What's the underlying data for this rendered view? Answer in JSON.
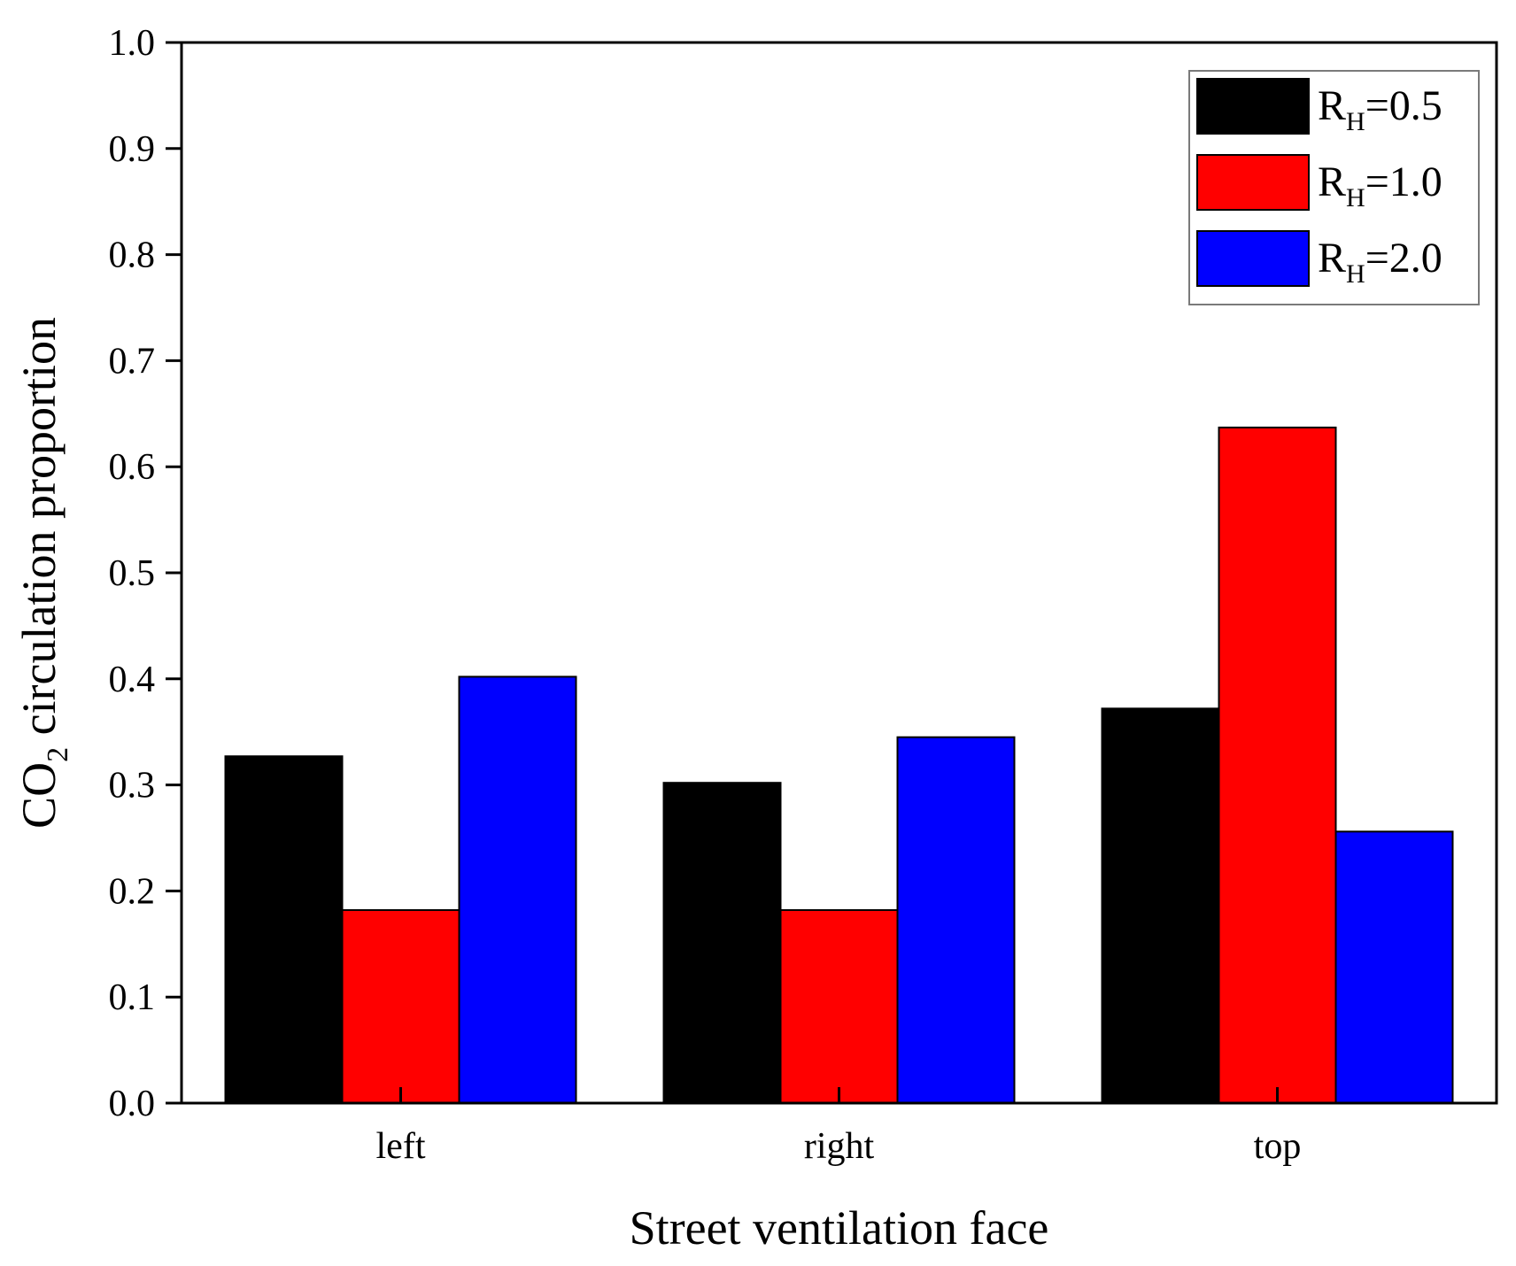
{
  "chart_data": {
    "type": "bar",
    "categories": [
      "left",
      "right",
      "top"
    ],
    "series": [
      {
        "name": "R_H=0.5",
        "label_main": "R",
        "label_sub": "H",
        "label_value": "=0.5",
        "color": "#000000",
        "values": [
          0.327,
          0.302,
          0.372
        ]
      },
      {
        "name": "R_H=1.0",
        "label_main": "R",
        "label_sub": "H",
        "label_value": "=1.0",
        "color": "#ff0000",
        "values": [
          0.182,
          0.182,
          0.637
        ]
      },
      {
        "name": "R_H=2.0",
        "label_main": "R",
        "label_sub": "H",
        "label_value": "=2.0",
        "color": "#0000ff",
        "values": [
          0.402,
          0.345,
          0.256
        ]
      }
    ],
    "title": "",
    "xlabel": "Street ventilation face",
    "ylabel_main": "CO",
    "ylabel_sub": "2",
    "ylabel_rest": " circulation proportion",
    "ylim": [
      0.0,
      1.0
    ],
    "yticks": [
      "0.0",
      "0.1",
      "0.2",
      "0.3",
      "0.4",
      "0.5",
      "0.6",
      "0.7",
      "0.8",
      "0.9",
      "1.0"
    ],
    "legend_position": "top-right",
    "grid": false
  }
}
